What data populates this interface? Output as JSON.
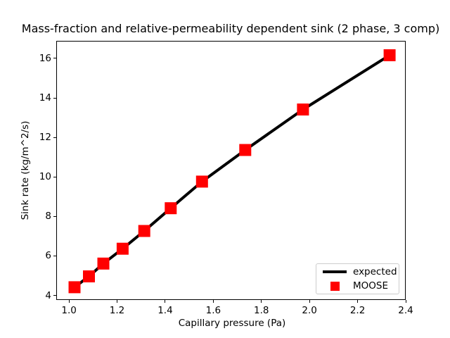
{
  "chart_data": {
    "type": "line",
    "title": "Mass-fraction and relative-permeability dependent sink (2 phase, 3 comp)",
    "xlabel": "Capillary pressure (Pa)",
    "ylabel": "Sink rate (kg/m^2/s)",
    "xlim": [
      0.947,
      2.4
    ],
    "ylim": [
      3.77,
      16.89
    ],
    "grid": false,
    "xticks": {
      "values": [
        1.0,
        1.2,
        1.4,
        1.6,
        1.8,
        2.0,
        2.2,
        2.4
      ],
      "labels": [
        "1.0",
        "1.2",
        "1.4",
        "1.6",
        "1.8",
        "2.0",
        "2.2",
        "2.4"
      ]
    },
    "yticks": {
      "values": [
        4,
        6,
        8,
        10,
        12,
        14,
        16
      ],
      "labels": [
        "4",
        "6",
        "8",
        "10",
        "12",
        "14",
        "16"
      ]
    },
    "x": [
      1.02,
      1.08,
      1.14,
      1.22,
      1.31,
      1.42,
      1.55,
      1.73,
      1.97,
      2.33
    ],
    "series": [
      {
        "name": "expected",
        "kind": "line",
        "color": "#000000",
        "linewidth": 4,
        "values": [
          4.45,
          5.0,
          5.65,
          6.4,
          7.3,
          8.45,
          9.8,
          11.4,
          13.45,
          16.2
        ]
      },
      {
        "name": "MOOSE",
        "kind": "scatter",
        "marker": "square",
        "color": "#ff0000",
        "markersize": 17,
        "values": [
          4.45,
          5.0,
          5.65,
          6.4,
          7.3,
          8.45,
          9.8,
          11.4,
          13.45,
          16.2
        ]
      }
    ],
    "legend": {
      "position": "lower right",
      "entries": [
        {
          "label": "expected",
          "swatch": "line",
          "color": "#000000"
        },
        {
          "label": "MOOSE",
          "swatch": "square",
          "color": "#ff0000"
        }
      ]
    }
  }
}
